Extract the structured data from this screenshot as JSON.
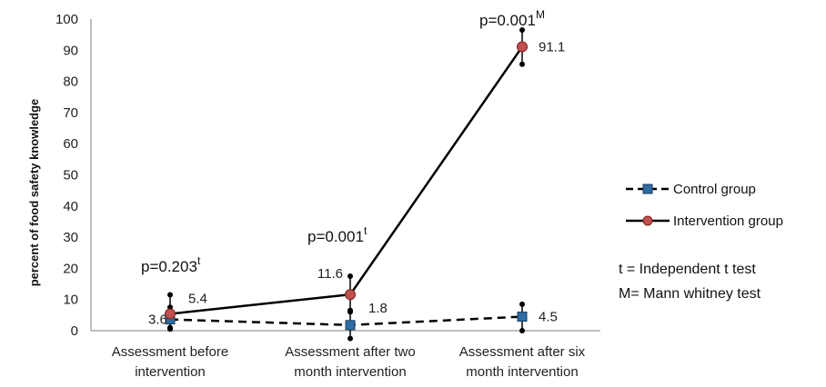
{
  "chart_data": {
    "type": "line",
    "title": "",
    "xlabel": "",
    "ylabel": "percent of food safety knowledge",
    "ylim": [
      0,
      100
    ],
    "yticks": [
      0,
      10,
      20,
      30,
      40,
      50,
      60,
      70,
      80,
      90,
      100
    ],
    "grid": false,
    "legend_position": "right",
    "categories": [
      [
        "Assessment before",
        "intervention"
      ],
      [
        "Assessment after two",
        "month intervention"
      ],
      [
        "Assessment after six",
        "month intervention"
      ]
    ],
    "series": [
      {
        "name": "Control group",
        "values": [
          3.6,
          1.8,
          4.5
        ],
        "labels": [
          "3.6",
          "1.8",
          "4.5"
        ],
        "error_low": [
          0.5,
          -2.5,
          0
        ],
        "error_high": [
          7.5,
          6.5,
          8.5
        ],
        "color": "#1f4e79",
        "marker_color": "#2e6da4",
        "line_style": "dashed",
        "marker": "square"
      },
      {
        "name": "Intervention group",
        "values": [
          5.4,
          11.6,
          91.1
        ],
        "labels": [
          "5.4",
          "11.6",
          "91.1"
        ],
        "error_low": [
          1,
          6,
          85.5
        ],
        "error_high": [
          11.5,
          17.5,
          96.5
        ],
        "color": "#000000",
        "marker_color": "#c0504d",
        "line_style": "solid",
        "marker": "circle"
      }
    ],
    "annotations": [
      {
        "text": "p=0.203",
        "sup": "t",
        "category_index": 0
      },
      {
        "text": "p=0.001",
        "sup": "t",
        "category_index": 1
      },
      {
        "text": "p=0.001",
        "sup": "M",
        "category_index": 2
      }
    ],
    "notes": [
      "t  = Independent t test",
      "M= Mann whitney test"
    ]
  }
}
